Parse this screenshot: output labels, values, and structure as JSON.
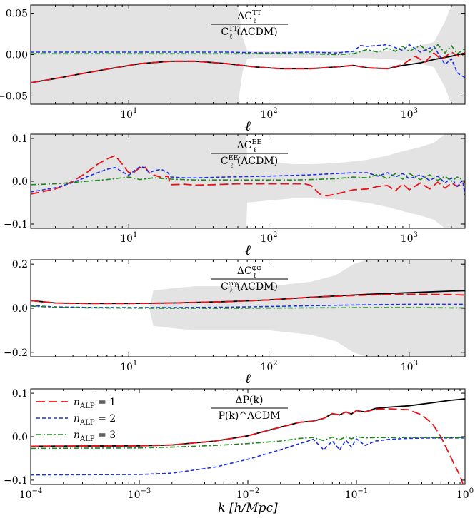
{
  "chart_data": [
    {
      "type": "line",
      "id": "tt",
      "title_numerator": "ΔC_ℓ^TT",
      "title_denominator": "C_ℓ^TT(ΛCDM)",
      "xscale": "log",
      "xlim": [
        2,
        2500
      ],
      "ylim": [
        -0.06,
        0.06
      ],
      "yticks": [
        -0.05,
        0.0,
        0.05
      ],
      "ytick_labels": [
        "−0.05",
        "0.00",
        "0.05"
      ],
      "xtick_exponents": [
        1,
        2,
        3
      ],
      "xlabel": "ℓ",
      "band": {
        "x": [
          2,
          10,
          30,
          50,
          60,
          65,
          70,
          80,
          100,
          200,
          400,
          700,
          1000,
          1500,
          1800,
          2000,
          2300,
          2500
        ],
        "lo": [
          -0.06,
          -0.06,
          -0.06,
          -0.06,
          -0.06,
          -0.02,
          -0.005,
          -0.004,
          -0.004,
          -0.004,
          -0.004,
          -0.005,
          -0.008,
          -0.015,
          -0.04,
          -0.06,
          -0.06,
          -0.06
        ],
        "hi": [
          0.06,
          0.06,
          0.06,
          0.06,
          0.06,
          0.02,
          0.005,
          0.004,
          0.004,
          0.004,
          0.004,
          0.005,
          0.008,
          0.015,
          0.04,
          0.06,
          0.06,
          0.06
        ]
      },
      "series": [
        {
          "name": "black",
          "x": [
            2,
            3,
            5,
            8,
            12,
            20,
            30,
            50,
            80,
            120,
            200,
            300,
            400,
            500,
            700,
            900,
            1200,
            1500,
            2000,
            2500
          ],
          "y": [
            -0.034,
            -0.029,
            -0.022,
            -0.016,
            -0.011,
            -0.008,
            -0.008,
            -0.011,
            -0.015,
            -0.017,
            -0.017,
            -0.015,
            -0.013,
            -0.016,
            -0.017,
            -0.013,
            -0.01,
            -0.006,
            -0.002,
            0.002
          ]
        },
        {
          "name": "n_ALP = 1",
          "x": [
            2,
            3,
            5,
            8,
            12,
            20,
            30,
            50,
            80,
            120,
            200,
            300,
            400,
            500,
            700,
            900,
            1100,
            1300,
            1500,
            1700,
            2000,
            2300,
            2500
          ],
          "y": [
            -0.034,
            -0.029,
            -0.022,
            -0.016,
            -0.011,
            -0.008,
            -0.008,
            -0.011,
            -0.015,
            -0.017,
            -0.017,
            -0.015,
            -0.013,
            -0.016,
            -0.017,
            -0.012,
            -0.002,
            -0.009,
            0.002,
            -0.006,
            0.003,
            -0.003,
            0.002
          ]
        },
        {
          "name": "n_ALP = 2",
          "x": [
            2,
            5,
            10,
            20,
            50,
            100,
            200,
            300,
            400,
            450,
            500,
            700,
            900,
            1000,
            1200,
            1500,
            1800,
            2000,
            2200,
            2500
          ],
          "y": [
            0.003,
            0.003,
            0.003,
            0.003,
            0.003,
            0.002,
            0.003,
            0.002,
            0.004,
            0.011,
            0.01,
            0.012,
            0.005,
            0.012,
            0.003,
            0.01,
            -0.012,
            -0.005,
            -0.022,
            -0.028
          ]
        },
        {
          "name": "n_ALP = 3",
          "x": [
            2,
            5,
            10,
            20,
            50,
            100,
            200,
            300,
            400,
            500,
            600,
            700,
            800,
            900,
            1000,
            1200,
            1400,
            1600,
            1800,
            2000,
            2200,
            2500
          ],
          "y": [
            0.001,
            0.001,
            0.001,
            0.001,
            0.001,
            0.001,
            0.001,
            0.0,
            0.001,
            0.006,
            0.003,
            0.008,
            0.004,
            0.01,
            0.004,
            0.011,
            0.003,
            0.012,
            0.002,
            0.011,
            0.001,
            0.007
          ]
        }
      ]
    },
    {
      "type": "line",
      "id": "ee",
      "title_numerator": "ΔC_ℓ^EE",
      "title_denominator": "C_ℓ^EE(ΛCDM)",
      "xscale": "log",
      "xlim": [
        2,
        2500
      ],
      "ylim": [
        -0.11,
        0.11
      ],
      "yticks": [
        -0.1,
        0.0,
        0.1
      ],
      "ytick_labels": [
        "−0.1",
        "0.0",
        "0.1"
      ],
      "xtick_exponents": [
        1,
        2,
        3
      ],
      "xlabel": "ℓ",
      "band": {
        "x": [
          2,
          60,
          69,
          70,
          100,
          150,
          200,
          300,
          500,
          700,
          900,
          1200,
          1500,
          1800,
          1900,
          2000,
          2500
        ],
        "lo": [
          -0.11,
          -0.11,
          -0.11,
          -0.05,
          -0.045,
          -0.04,
          -0.04,
          -0.042,
          -0.05,
          -0.06,
          -0.07,
          -0.08,
          -0.09,
          -0.11,
          -0.11,
          -0.11,
          -0.11
        ],
        "hi": [
          0.11,
          0.11,
          0.11,
          0.05,
          0.045,
          0.04,
          0.04,
          0.042,
          0.05,
          0.06,
          0.07,
          0.08,
          0.09,
          0.11,
          0.11,
          0.11,
          0.11
        ]
      },
      "series": [
        {
          "name": "n_ALP = 1",
          "x": [
            2,
            3,
            4,
            5,
            6,
            7,
            8,
            9,
            10,
            11,
            12,
            13,
            14,
            15,
            17,
            19,
            20,
            25,
            30,
            40,
            60,
            100,
            150,
            180,
            200,
            230,
            260,
            300,
            400,
            500,
            600,
            700,
            800,
            900,
            1000,
            1200,
            1400,
            1600,
            1800,
            2000,
            2200,
            2500
          ],
          "y": [
            -0.03,
            -0.018,
            0.0,
            0.02,
            0.04,
            0.052,
            0.06,
            0.04,
            0.02,
            0.022,
            0.032,
            0.034,
            0.02,
            0.015,
            0.009,
            0.012,
            -0.008,
            -0.007,
            -0.009,
            -0.008,
            -0.006,
            -0.006,
            -0.006,
            -0.006,
            -0.01,
            -0.03,
            -0.034,
            -0.03,
            -0.02,
            -0.018,
            -0.012,
            -0.01,
            -0.022,
            -0.006,
            -0.02,
            -0.004,
            -0.018,
            -0.002,
            -0.016,
            -0.004,
            -0.012,
            -0.002
          ]
        },
        {
          "name": "n_ALP = 2",
          "x": [
            2,
            3,
            4,
            5,
            6,
            7,
            8,
            9,
            10,
            11,
            12,
            13,
            14,
            15,
            17,
            19,
            20,
            25,
            30,
            50,
            100,
            200,
            300,
            400,
            500,
            600,
            700,
            800,
            900,
            1000,
            1200,
            1400,
            1600,
            1800,
            2000,
            2200,
            2400,
            2500
          ],
          "y": [
            -0.025,
            -0.015,
            -0.003,
            0.01,
            0.02,
            0.028,
            0.032,
            0.022,
            0.014,
            0.025,
            0.034,
            0.032,
            0.02,
            0.024,
            0.028,
            0.02,
            0.01,
            0.008,
            0.008,
            0.01,
            0.012,
            0.015,
            0.018,
            0.02,
            0.02,
            0.012,
            0.02,
            0.01,
            0.018,
            0.006,
            0.015,
            0.002,
            0.012,
            -0.004,
            0.008,
            -0.012,
            0.002,
            -0.032
          ]
        },
        {
          "name": "n_ALP = 3",
          "x": [
            2,
            3,
            5,
            7,
            10,
            12,
            15,
            20,
            30,
            50,
            100,
            150,
            200,
            300,
            400,
            500,
            600,
            700,
            800,
            900,
            1000,
            1200,
            1400,
            1600,
            1800,
            2000,
            2200,
            2500
          ],
          "y": [
            -0.008,
            -0.006,
            0.0,
            0.004,
            0.01,
            0.004,
            0.008,
            0.005,
            0.003,
            0.003,
            0.003,
            0.003,
            0.004,
            0.006,
            0.01,
            0.008,
            0.016,
            0.006,
            0.018,
            0.005,
            0.018,
            0.004,
            0.015,
            0.002,
            0.012,
            0.0,
            0.01,
            0.0
          ]
        }
      ]
    },
    {
      "type": "line",
      "id": "pp",
      "title_numerator": "ΔC_ℓ^φφ",
      "title_denominator": "C_ℓ^φφ(ΛCDM)",
      "xscale": "log",
      "xlim": [
        2,
        2500
      ],
      "ylim": [
        -0.22,
        0.22
      ],
      "yticks": [
        -0.2,
        0.0,
        0.2
      ],
      "ytick_labels": [
        "−0.2",
        "0.0",
        "0.2"
      ],
      "xtick_exponents": [
        1,
        2,
        3
      ],
      "xlabel": "ℓ",
      "band": {
        "x": [
          2,
          14,
          15,
          20,
          30,
          50,
          100,
          200,
          300,
          400,
          500,
          600,
          1000,
          2000,
          2500
        ],
        "lo": [
          0.0,
          0.0,
          -0.08,
          -0.09,
          -0.1,
          -0.1,
          -0.1,
          -0.12,
          -0.15,
          -0.2,
          -0.22,
          -0.22,
          -0.22,
          -0.22,
          -0.22
        ],
        "hi": [
          0.0,
          0.0,
          0.08,
          0.09,
          0.1,
          0.1,
          0.1,
          0.12,
          0.15,
          0.2,
          0.22,
          0.22,
          0.22,
          0.22,
          0.22
        ]
      },
      "series": [
        {
          "name": "black",
          "x": [
            2,
            3,
            5,
            10,
            20,
            50,
            100,
            200,
            500,
            1000,
            2000,
            2500
          ],
          "y": [
            0.035,
            0.024,
            0.022,
            0.022,
            0.024,
            0.03,
            0.038,
            0.05,
            0.063,
            0.071,
            0.078,
            0.08
          ]
        },
        {
          "name": "n_ALP = 1",
          "x": [
            2,
            3,
            5,
            10,
            20,
            50,
            100,
            200,
            500,
            1000,
            2000,
            2500
          ],
          "y": [
            0.035,
            0.024,
            0.022,
            0.022,
            0.024,
            0.03,
            0.038,
            0.05,
            0.06,
            0.064,
            0.062,
            0.06
          ]
        },
        {
          "name": "n_ALP = 2",
          "x": [
            2,
            3,
            5,
            10,
            20,
            50,
            100,
            200,
            500,
            1000,
            2000,
            2500
          ],
          "y": [
            0.012,
            0.006,
            0.004,
            0.003,
            0.003,
            0.005,
            0.008,
            0.012,
            0.016,
            0.018,
            0.018,
            0.018
          ]
        },
        {
          "name": "n_ALP = 3",
          "x": [
            2,
            3,
            5,
            10,
            20,
            50,
            100,
            200,
            500,
            1000,
            2000,
            2500
          ],
          "y": [
            0.01,
            0.004,
            0.002,
            0.001,
            0.0,
            0.0,
            0.001,
            0.002,
            0.003,
            0.003,
            0.002,
            0.002
          ]
        }
      ]
    },
    {
      "type": "line",
      "id": "pk",
      "title_numerator": "ΔP(k)",
      "title_denominator": "P(k)^ΛCDM",
      "xscale": "log",
      "xlim": [
        0.0001,
        1
      ],
      "ylim": [
        -0.11,
        0.11
      ],
      "yticks": [
        -0.1,
        0.0,
        0.1
      ],
      "ytick_labels": [
        "−0.1",
        "0.0",
        "0.1"
      ],
      "xtick_exponents": [
        -4,
        -3,
        -2,
        -1,
        0
      ],
      "xlabel": "k [h/Mpc]",
      "legend": [
        "n_ALP = 1",
        "n_ALP = 2",
        "n_ALP = 3"
      ],
      "series": [
        {
          "name": "black",
          "x": [
            0.0001,
            0.001,
            0.002,
            0.005,
            0.01,
            0.02,
            0.03,
            0.04,
            0.05,
            0.06,
            0.07,
            0.08,
            0.09,
            0.1,
            0.12,
            0.15,
            0.2,
            0.3,
            0.5,
            0.7,
            1
          ],
          "y": [
            -0.022,
            -0.021,
            -0.019,
            -0.01,
            0.002,
            0.022,
            0.033,
            0.036,
            0.042,
            0.053,
            0.05,
            0.057,
            0.052,
            0.06,
            0.057,
            0.065,
            0.068,
            0.071,
            0.078,
            0.083,
            0.087
          ]
        },
        {
          "name": "n_ALP = 1",
          "x": [
            0.0001,
            0.001,
            0.002,
            0.005,
            0.01,
            0.02,
            0.03,
            0.04,
            0.05,
            0.06,
            0.07,
            0.08,
            0.09,
            0.1,
            0.12,
            0.15,
            0.2,
            0.3,
            0.4,
            0.5,
            0.6,
            0.7,
            0.8,
            0.9,
            0.96
          ],
          "y": [
            -0.022,
            -0.021,
            -0.019,
            -0.01,
            0.002,
            0.022,
            0.033,
            0.036,
            0.042,
            0.053,
            0.05,
            0.057,
            0.052,
            0.06,
            0.057,
            0.063,
            0.064,
            0.062,
            0.05,
            0.03,
            0.0,
            -0.035,
            -0.065,
            -0.09,
            -0.11
          ]
        },
        {
          "name": "n_ALP = 2",
          "x": [
            0.0001,
            0.001,
            0.002,
            0.005,
            0.01,
            0.02,
            0.03,
            0.04,
            0.05,
            0.06,
            0.07,
            0.08,
            0.09,
            0.1,
            0.12,
            0.15,
            0.2,
            0.3,
            0.5,
            1
          ],
          "y": [
            -0.088,
            -0.087,
            -0.084,
            -0.07,
            -0.052,
            -0.03,
            -0.016,
            -0.006,
            -0.03,
            -0.01,
            -0.03,
            -0.008,
            -0.024,
            -0.005,
            -0.02,
            -0.01,
            -0.006,
            -0.004,
            -0.003,
            -0.003
          ]
        },
        {
          "name": "n_ALP = 3",
          "x": [
            0.0001,
            0.001,
            0.002,
            0.005,
            0.01,
            0.02,
            0.03,
            0.04,
            0.05,
            0.06,
            0.07,
            0.08,
            0.09,
            0.1,
            0.12,
            0.15,
            0.2,
            0.3,
            0.5,
            1
          ],
          "y": [
            -0.027,
            -0.026,
            -0.024,
            -0.02,
            -0.016,
            -0.01,
            -0.004,
            -0.002,
            -0.009,
            -0.001,
            -0.007,
            0.0,
            -0.005,
            0.0,
            -0.003,
            -0.002,
            -0.002,
            -0.002,
            -0.002,
            -0.002
          ]
        }
      ]
    }
  ],
  "colors": {
    "black": "#000000",
    "n_ALP = 1": "#e8141c",
    "n_ALP = 2": "#1f2fe0",
    "n_ALP = 3": "#1a8a1a",
    "band": "#e3e3e3"
  }
}
